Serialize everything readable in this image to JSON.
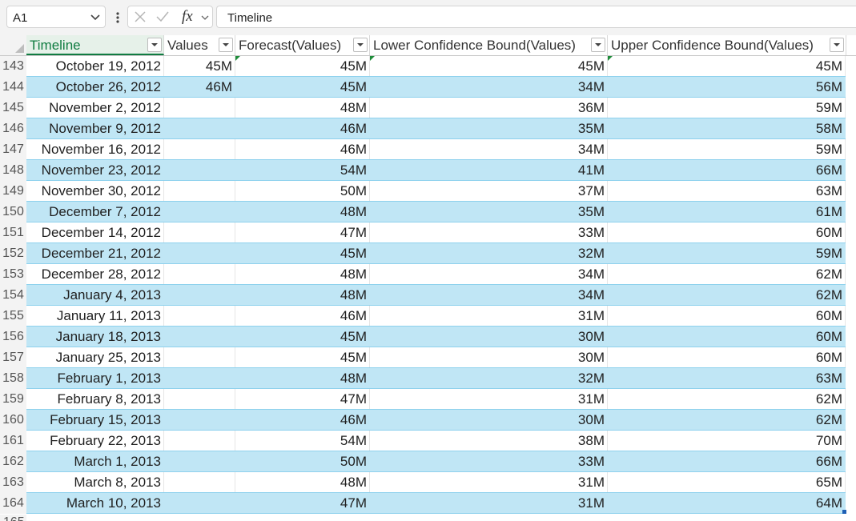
{
  "formula_bar": {
    "name_box": "A1",
    "formula": "Timeline",
    "fx_label": "fx"
  },
  "columns": [
    "Timeline",
    "Values",
    "Forecast(Values)",
    "Lower Confidence Bound(Values)",
    "Upper Confidence Bound(Values)"
  ],
  "rows": [
    {
      "num": "143",
      "timeline": "October 19, 2012",
      "values": "45M",
      "forecast": "45M",
      "lower": "45M",
      "upper": "45M"
    },
    {
      "num": "144",
      "timeline": "October 26, 2012",
      "values": "46M",
      "forecast": "45M",
      "lower": "34M",
      "upper": "56M"
    },
    {
      "num": "145",
      "timeline": "November 2, 2012",
      "values": "",
      "forecast": "48M",
      "lower": "36M",
      "upper": "59M"
    },
    {
      "num": "146",
      "timeline": "November 9, 2012",
      "values": "",
      "forecast": "46M",
      "lower": "35M",
      "upper": "58M"
    },
    {
      "num": "147",
      "timeline": "November 16, 2012",
      "values": "",
      "forecast": "46M",
      "lower": "34M",
      "upper": "59M"
    },
    {
      "num": "148",
      "timeline": "November 23, 2012",
      "values": "",
      "forecast": "54M",
      "lower": "41M",
      "upper": "66M"
    },
    {
      "num": "149",
      "timeline": "November 30, 2012",
      "values": "",
      "forecast": "50M",
      "lower": "37M",
      "upper": "63M"
    },
    {
      "num": "150",
      "timeline": "December 7, 2012",
      "values": "",
      "forecast": "48M",
      "lower": "35M",
      "upper": "61M"
    },
    {
      "num": "151",
      "timeline": "December 14, 2012",
      "values": "",
      "forecast": "47M",
      "lower": "33M",
      "upper": "60M"
    },
    {
      "num": "152",
      "timeline": "December 21, 2012",
      "values": "",
      "forecast": "45M",
      "lower": "32M",
      "upper": "59M"
    },
    {
      "num": "153",
      "timeline": "December 28, 2012",
      "values": "",
      "forecast": "48M",
      "lower": "34M",
      "upper": "62M"
    },
    {
      "num": "154",
      "timeline": "January 4, 2013",
      "values": "",
      "forecast": "48M",
      "lower": "34M",
      "upper": "62M"
    },
    {
      "num": "155",
      "timeline": "January 11, 2013",
      "values": "",
      "forecast": "46M",
      "lower": "31M",
      "upper": "60M"
    },
    {
      "num": "156",
      "timeline": "January 18, 2013",
      "values": "",
      "forecast": "45M",
      "lower": "30M",
      "upper": "60M"
    },
    {
      "num": "157",
      "timeline": "January 25, 2013",
      "values": "",
      "forecast": "45M",
      "lower": "30M",
      "upper": "60M"
    },
    {
      "num": "158",
      "timeline": "February 1, 2013",
      "values": "",
      "forecast": "48M",
      "lower": "32M",
      "upper": "63M"
    },
    {
      "num": "159",
      "timeline": "February 8, 2013",
      "values": "",
      "forecast": "47M",
      "lower": "31M",
      "upper": "62M"
    },
    {
      "num": "160",
      "timeline": "February 15, 2013",
      "values": "",
      "forecast": "46M",
      "lower": "30M",
      "upper": "62M"
    },
    {
      "num": "161",
      "timeline": "February 22, 2013",
      "values": "",
      "forecast": "54M",
      "lower": "38M",
      "upper": "70M"
    },
    {
      "num": "162",
      "timeline": "March 1, 2013",
      "values": "",
      "forecast": "50M",
      "lower": "33M",
      "upper": "66M"
    },
    {
      "num": "163",
      "timeline": "March 8, 2013",
      "values": "",
      "forecast": "48M",
      "lower": "31M",
      "upper": "65M"
    },
    {
      "num": "164",
      "timeline": "March 10, 2013",
      "values": "",
      "forecast": "47M",
      "lower": "31M",
      "upper": "64M"
    }
  ],
  "next_row_partial": "165",
  "colors": {
    "band": "#c0e6f5",
    "selected_header": "#107c41",
    "error_indicator": "#1e8c3a"
  }
}
